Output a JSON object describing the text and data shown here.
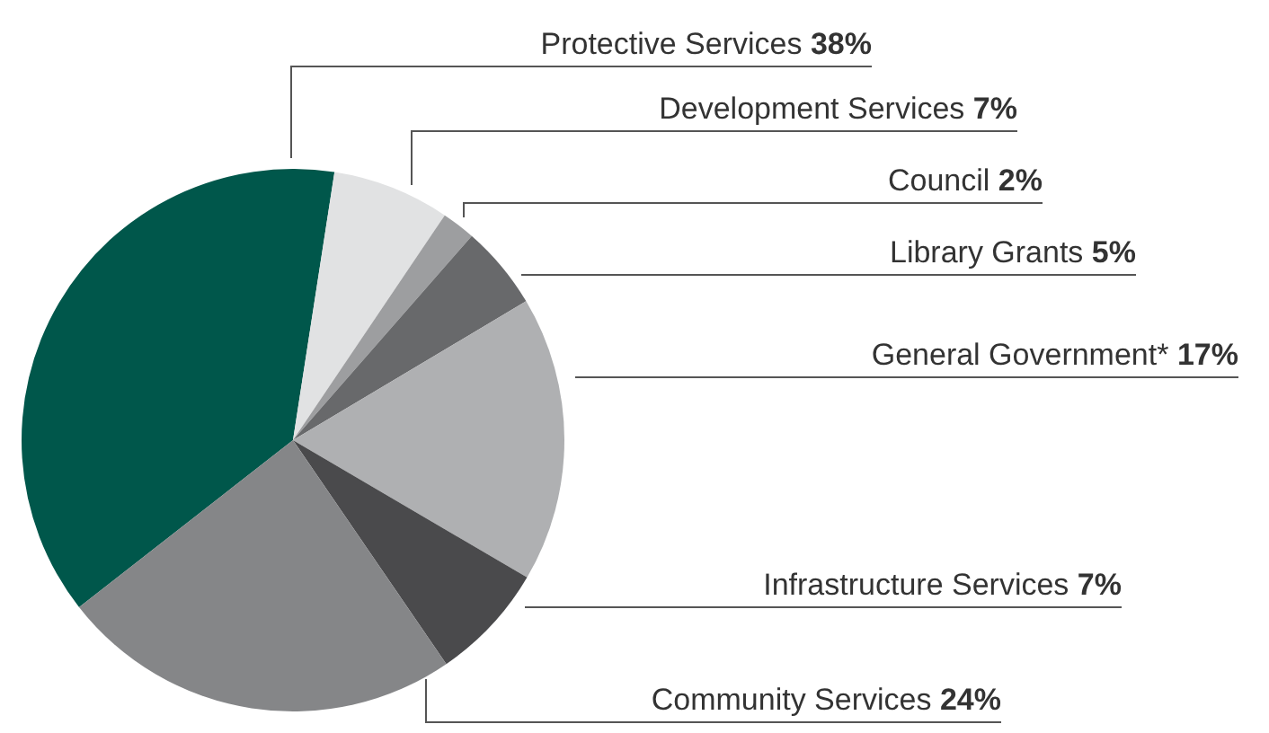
{
  "chart_data": {
    "type": "pie",
    "categories": [
      "Protective Services",
      "Development Services",
      "Council",
      "Library Grants",
      "General Government*",
      "Infrastructure Services",
      "Community Services"
    ],
    "values": [
      38,
      7,
      2,
      5,
      17,
      7,
      24
    ],
    "value_labels": [
      "38%",
      "7%",
      "2%",
      "5%",
      "17%",
      "7%",
      "24%"
    ],
    "colors": [
      "#00574b",
      "#e1e2e3",
      "#9d9ea0",
      "#68696b",
      "#afb0b2",
      "#4a4a4c",
      "#858688"
    ]
  }
}
